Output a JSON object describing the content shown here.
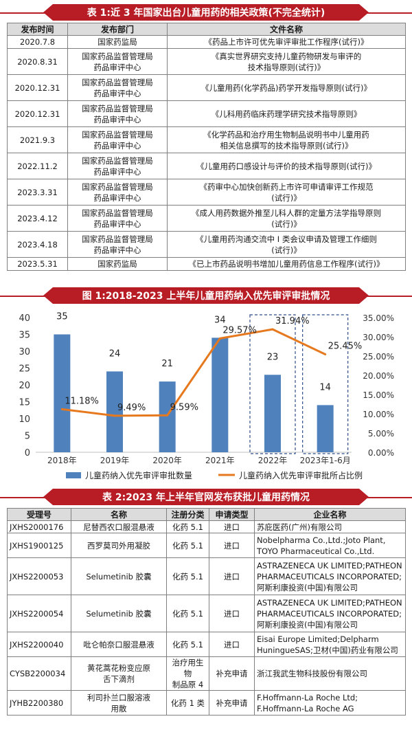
{
  "table1": {
    "title": "表 1:近 3 年国家出台儿童用药的相关政策(不完全统计)",
    "headers": [
      "发布时间",
      "发布部门",
      "文件名称"
    ],
    "rows": [
      {
        "date": "2020.7.8",
        "dept": [
          "国家药监局"
        ],
        "doc": [
          "《药品上市许可优先审评审批工作程序(试行)》"
        ]
      },
      {
        "date": "2020.8.31",
        "dept": [
          "国家药品监督管理局",
          "药品审评中心"
        ],
        "doc": [
          "《真实世界研究支持儿童药物研发与审评的",
          "技术指导原则(试行)》"
        ]
      },
      {
        "date": "2020.12.31",
        "dept": [
          "国家药品监督管理局",
          "药品审评中心"
        ],
        "doc": [
          "《儿童用药(化学药品)药学开发指导原则(试行)》"
        ]
      },
      {
        "date": "2020.12.31",
        "dept": [
          "国家药品监督管理局",
          "药品审评中心"
        ],
        "doc": [
          "《儿科用药临床药理学研究技术指导原则》"
        ]
      },
      {
        "date": "2021.9.3",
        "dept": [
          "国家药品监督管理局",
          "药品审评中心"
        ],
        "doc": [
          "《化学药品和治疗用生物制品说明书中儿童用药",
          "相关信息撰写的技术指导原则(试行)》"
        ]
      },
      {
        "date": "2022.11.2",
        "dept": [
          "国家药品监督管理局",
          "药品审评中心"
        ],
        "doc": [
          "《儿童用药口感设计与评价的技术指导原则(试行)》"
        ]
      },
      {
        "date": "2023.3.31",
        "dept": [
          "国家药品监督管理局",
          "药品审评中心"
        ],
        "doc": [
          "《药审中心加快创新药上市许可申请审评工作规范",
          "(试行)》"
        ]
      },
      {
        "date": "2023.4.12",
        "dept": [
          "国家药品监督管理局",
          "药品审评中心"
        ],
        "doc": [
          "《成人用药数据外推至儿科人群的定量方法学指导原则",
          "(试行)》"
        ]
      },
      {
        "date": "2023.4.18",
        "dept": [
          "国家药品监督管理局",
          "药品审评中心"
        ],
        "doc": [
          "《儿童用药沟通交流中 I 类会议申请及管理工作细则",
          "(试行)》"
        ]
      },
      {
        "date": "2023.5.31",
        "dept": [
          "国家药监局"
        ],
        "doc": [
          "《已上市药品说明书增加儿童用药信息工作程序(试行)》"
        ]
      }
    ]
  },
  "figure1": {
    "title": "图 1:2018-2023 上半年儿童用药纳入优先审评审批情况"
  },
  "chart_data": {
    "type": "bar",
    "categories": [
      "2018年",
      "2019年",
      "2020年",
      "2021年",
      "2022年",
      "2023年1-6月"
    ],
    "series": [
      {
        "name": "儿童药纳入优先审评审批数量",
        "kind": "bar",
        "axis": "left",
        "values": [
          35,
          24,
          21,
          34,
          23,
          14
        ],
        "color": "#4f81bd"
      },
      {
        "name": "儿童药纳入优先审评审批所占比例",
        "kind": "line",
        "axis": "right",
        "values": [
          11.18,
          9.49,
          9.59,
          29.57,
          31.94,
          25.45
        ],
        "color": "#e6781e"
      }
    ],
    "bar_labels": [
      "35",
      "24",
      "21",
      "34",
      "23",
      "14"
    ],
    "line_labels": [
      "11.18%",
      "9.49%",
      "9.59%",
      "29.57%",
      "31.94%",
      "25.45%"
    ],
    "ylim_left": [
      0,
      40
    ],
    "yticks_left": [
      "0",
      "5",
      "10",
      "15",
      "20",
      "25",
      "30",
      "35",
      "40"
    ],
    "ylim_right": [
      0,
      35
    ],
    "yticks_right": [
      "0.00%",
      "5.00%",
      "10.00%",
      "15.00%",
      "20.00%",
      "25.00%",
      "30.00%",
      "35.00%"
    ],
    "highlighted_categories": [
      "2022年",
      "2023年1-6月"
    ],
    "legend_position": "bottom"
  },
  "table2": {
    "title": "表 2:2023 年上半年官网发布获批儿童用药情况",
    "headers": [
      "受理号",
      "名称",
      "注册分类",
      "申请类型",
      "企业名称"
    ],
    "rows": [
      {
        "no": "JXHS2000176",
        "name": [
          "尼替西农口服混悬液"
        ],
        "cls": [
          "化药 5.1"
        ],
        "type": "进口",
        "company": [
          "苏庇医药(广州)有限公司"
        ]
      },
      {
        "no": "JXHS1900125",
        "name": [
          "西罗莫司外用凝胶"
        ],
        "cls": [
          "化药 5.1"
        ],
        "type": "进口",
        "company": [
          "Nobelpharma Co.,Ltd.;Joto Plant,",
          "TOYO Pharmaceutical Co.,Ltd."
        ]
      },
      {
        "no": "JXHS2200053",
        "name": [
          "Selumetinib 胶囊"
        ],
        "cls": [
          "化药 5.1"
        ],
        "type": "进口",
        "company": [
          "ASTRAZENECA UK LIMITED;PATHEON",
          "PHARMACEUTICALS INCORPORATED;",
          "阿斯利康投资(中国)有限公司"
        ]
      },
      {
        "no": "JXHS2200054",
        "name": [
          "Selumetinib 胶囊"
        ],
        "cls": [
          "化药 5.1"
        ],
        "type": "进口",
        "company": [
          "ASTRAZENECA UK LIMITED;PATHEON",
          "PHARMACEUTICALS INCORPORATED;",
          "阿斯利康投资(中国)有限公司"
        ]
      },
      {
        "no": "JXHS2200040",
        "name": [
          "吡仑帕奈口服混悬液"
        ],
        "cls": [
          "化药 5.1"
        ],
        "type": "进口",
        "company": [
          "Eisai Europe Limited;Delpharm",
          "HuningueSAS;卫材(中国)药业有限公司"
        ]
      },
      {
        "no": "CYSB2200034",
        "name": [
          "黄花蒿花粉变应原",
          "舌下滴剂"
        ],
        "cls": [
          "治疗用生物",
          "制品原 4"
        ],
        "type": "补充申请",
        "company": [
          "浙江我武生物科技股份有限公司"
        ]
      },
      {
        "no": "JYHB2200380",
        "name": [
          "利司扑兰口服溶液",
          "用散"
        ],
        "cls": [
          "化药 1 类"
        ],
        "type": "补充申请",
        "company": [
          "F.Hoffmann-La Roche Ltd;",
          "F.Hoffmann-La Roche AG"
        ]
      }
    ]
  }
}
